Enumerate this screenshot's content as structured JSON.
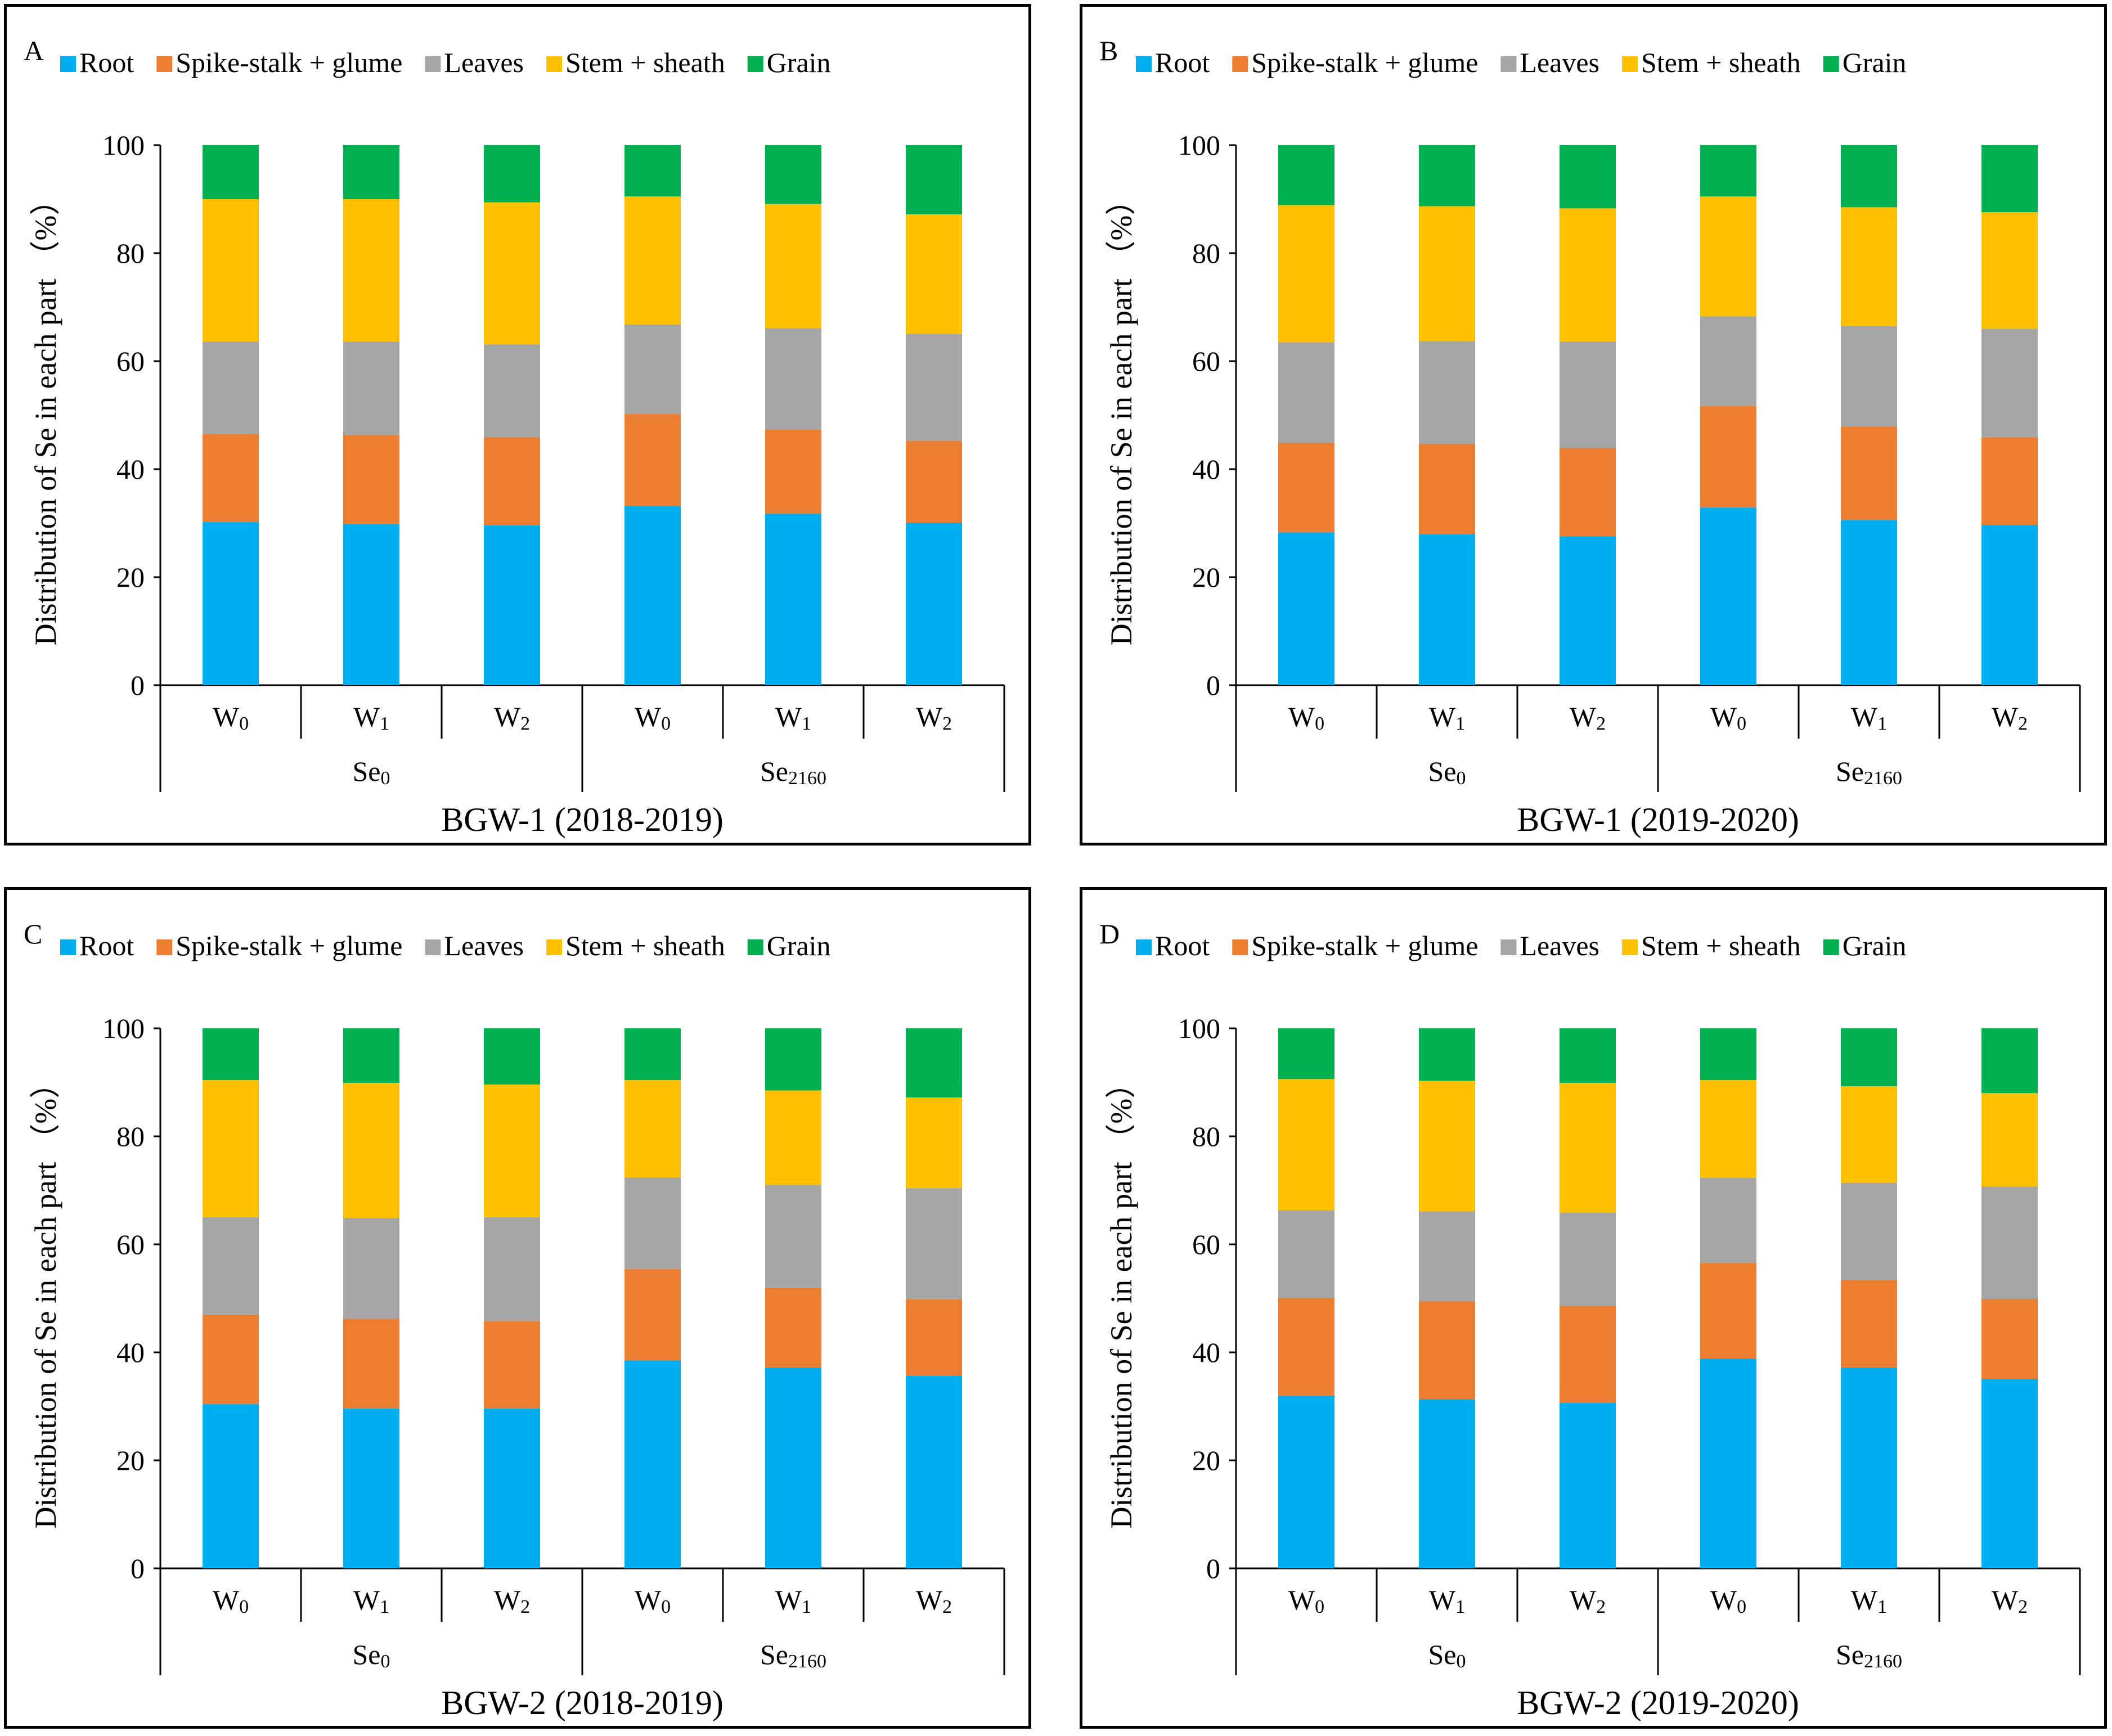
{
  "legend": [
    "Root",
    "Spike-stalk + glume",
    "Leaves",
    "Stem + sheath",
    "Grain"
  ],
  "colors": {
    "Root": "#00AEEF",
    "Spike-stalk + glume": "#ED7D31",
    "Leaves": "#A5A5A5",
    "Stem + sheath": "#FFC000",
    "Grain": "#00B050"
  },
  "chart_data": [
    {
      "type": "bar",
      "stacked": true,
      "panel_letter": "A",
      "title": "BGW-1 (2018-2019)",
      "ylabel": "Distribution of Se in each part （%）",
      "ylim": [
        0,
        100
      ],
      "yticks": [
        0,
        20,
        40,
        60,
        80,
        100
      ],
      "categories": [
        {
          "w": "W",
          "sub": "0"
        },
        {
          "w": "W",
          "sub": "1"
        },
        {
          "w": "W",
          "sub": "2"
        },
        {
          "w": "W",
          "sub": "0"
        },
        {
          "w": "W",
          "sub": "1"
        },
        {
          "w": "W",
          "sub": "2"
        }
      ],
      "groups": [
        {
          "name": "Se",
          "sub": "0"
        },
        {
          "name": "Se",
          "sub": "2160"
        }
      ],
      "series": [
        {
          "name": "Root",
          "values": [
            30.2,
            29.8,
            29.6,
            33.2,
            31.8,
            30.1
          ]
        },
        {
          "name": "Spike-stalk + glume",
          "values": [
            16.3,
            16.5,
            16.3,
            17.0,
            15.5,
            15.1
          ]
        },
        {
          "name": "Leaves",
          "values": [
            17.1,
            17.3,
            17.2,
            16.6,
            18.8,
            19.8
          ]
        },
        {
          "name": "Stem + sheath",
          "values": [
            26.4,
            26.4,
            26.3,
            23.7,
            23.0,
            22.2
          ]
        },
        {
          "name": "Grain",
          "values": [
            10.0,
            10.0,
            10.6,
            9.5,
            10.9,
            12.8
          ]
        }
      ]
    },
    {
      "type": "bar",
      "stacked": true,
      "panel_letter": "B",
      "title": "BGW-1 (2019-2020)",
      "ylabel": "Distribution of Se in each part （%）",
      "ylim": [
        0,
        100
      ],
      "yticks": [
        0,
        20,
        40,
        60,
        80,
        100
      ],
      "categories": [
        {
          "w": "W",
          "sub": "0"
        },
        {
          "w": "W",
          "sub": "1"
        },
        {
          "w": "W",
          "sub": "2"
        },
        {
          "w": "W",
          "sub": "0"
        },
        {
          "w": "W",
          "sub": "1"
        },
        {
          "w": "W",
          "sub": "2"
        }
      ],
      "groups": [
        {
          "name": "Se",
          "sub": "0"
        },
        {
          "name": "Se",
          "sub": "2160"
        }
      ],
      "series": [
        {
          "name": "Root",
          "values": [
            28.3,
            28.0,
            27.5,
            32.9,
            30.6,
            29.7
          ]
        },
        {
          "name": "Spike-stalk + glume",
          "values": [
            16.6,
            16.7,
            16.4,
            18.8,
            17.3,
            16.2
          ]
        },
        {
          "name": "Leaves",
          "values": [
            18.6,
            19.0,
            19.7,
            16.6,
            18.6,
            20.1
          ]
        },
        {
          "name": "Stem + sheath",
          "values": [
            25.4,
            25.0,
            24.7,
            22.2,
            22.0,
            21.6
          ]
        },
        {
          "name": "Grain",
          "values": [
            11.1,
            11.3,
            11.7,
            9.5,
            11.5,
            12.4
          ]
        }
      ]
    },
    {
      "type": "bar",
      "stacked": true,
      "panel_letter": "C",
      "title": "BGW-2 (2018-2019)",
      "ylabel": "Distribution of Se in each part （%）",
      "ylim": [
        0,
        100
      ],
      "yticks": [
        0,
        20,
        40,
        60,
        80,
        100
      ],
      "categories": [
        {
          "w": "W",
          "sub": "0"
        },
        {
          "w": "W",
          "sub": "1"
        },
        {
          "w": "W",
          "sub": "2"
        },
        {
          "w": "W",
          "sub": "0"
        },
        {
          "w": "W",
          "sub": "1"
        },
        {
          "w": "W",
          "sub": "2"
        }
      ],
      "groups": [
        {
          "name": "Se",
          "sub": "0"
        },
        {
          "name": "Se",
          "sub": "2160"
        }
      ],
      "series": [
        {
          "name": "Root",
          "values": [
            30.4,
            29.6,
            29.6,
            38.5,
            37.2,
            35.7
          ]
        },
        {
          "name": "Spike-stalk + glume",
          "values": [
            16.6,
            16.6,
            16.2,
            16.9,
            14.8,
            14.1
          ]
        },
        {
          "name": "Leaves",
          "values": [
            18.0,
            18.7,
            19.2,
            17.0,
            19.0,
            20.6
          ]
        },
        {
          "name": "Stem + sheath",
          "values": [
            25.4,
            25.0,
            24.6,
            18.0,
            17.5,
            16.8
          ]
        },
        {
          "name": "Grain",
          "values": [
            9.6,
            10.1,
            10.4,
            9.6,
            11.5,
            12.8
          ]
        }
      ]
    },
    {
      "type": "bar",
      "stacked": true,
      "panel_letter": "D",
      "title": "BGW-2 (2019-2020)",
      "ylabel": "Distribution of Se in each part （%）",
      "ylim": [
        0,
        100
      ],
      "yticks": [
        0,
        20,
        40,
        60,
        80,
        100
      ],
      "categories": [
        {
          "w": "W",
          "sub": "0"
        },
        {
          "w": "W",
          "sub": "1"
        },
        {
          "w": "W",
          "sub": "2"
        },
        {
          "w": "W",
          "sub": "0"
        },
        {
          "w": "W",
          "sub": "1"
        },
        {
          "w": "W",
          "sub": "2"
        }
      ],
      "groups": [
        {
          "name": "Se",
          "sub": "0"
        },
        {
          "name": "Se",
          "sub": "2160"
        }
      ],
      "series": [
        {
          "name": "Root",
          "values": [
            32.0,
            31.3,
            30.7,
            38.8,
            37.2,
            35.1
          ]
        },
        {
          "name": "Spike-stalk + glume",
          "values": [
            18.1,
            18.2,
            17.9,
            17.8,
            16.2,
            14.8
          ]
        },
        {
          "name": "Leaves",
          "values": [
            16.2,
            16.6,
            17.3,
            15.7,
            18.0,
            20.8
          ]
        },
        {
          "name": "Stem + sheath",
          "values": [
            24.3,
            24.2,
            24.0,
            18.1,
            17.9,
            17.3
          ]
        },
        {
          "name": "Grain",
          "values": [
            9.4,
            9.7,
            10.1,
            9.6,
            10.7,
            12.0
          ]
        }
      ]
    }
  ]
}
